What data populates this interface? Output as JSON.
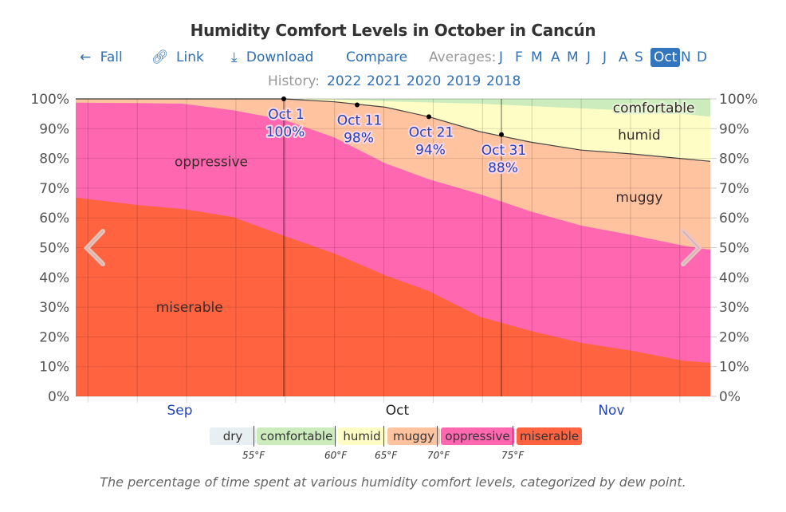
{
  "page": {
    "title": "Humidity Comfort Levels in October in Cancún",
    "nav": {
      "fall_label": "Fall",
      "link_label": "Link",
      "download_label": "Download",
      "compare_label": "Compare",
      "averages_label": "Averages:",
      "months": [
        "J",
        "F",
        "M",
        "A",
        "M",
        "J",
        "J",
        "A",
        "S",
        "Oct",
        "N",
        "D"
      ],
      "active_month": "Oct"
    },
    "history": {
      "label": "History:",
      "years": [
        "2022",
        "2021",
        "2020",
        "2019",
        "2018"
      ]
    },
    "legend": {
      "items": [
        {
          "label": "dry",
          "color": "#e8eff3"
        },
        {
          "label": "comfortable",
          "color": "#cdecbd"
        },
        {
          "label": "humid",
          "color": "#fffdc6"
        },
        {
          "label": "muggy",
          "color": "#ffc3a0"
        },
        {
          "label": "oppressive",
          "color": "#ff67b0"
        },
        {
          "label": "miserable",
          "color": "#ff6340"
        }
      ],
      "thresholds": [
        "55°F",
        "60°F",
        "65°F",
        "70°F",
        "75°F"
      ]
    },
    "caption": "The percentage of time spent at various humidity comfort levels, categorized by dew point.",
    "icons": {
      "fall": "arrow-left-icon",
      "link": "link-icon",
      "download": "download-icon",
      "prev": "chevron-left-icon",
      "next": "chevron-right-icon"
    }
  },
  "chart_data": {
    "type": "area",
    "stacked": true,
    "title": "Humidity Comfort Levels in October in Cancún",
    "xlabel": "",
    "ylabel": "",
    "x_unit": "days relative to Oct 1",
    "xlim": [
      -29,
      58
    ],
    "ylim": [
      0,
      100
    ],
    "y_ticks": [
      "0%",
      "10%",
      "20%",
      "30%",
      "40%",
      "50%",
      "60%",
      "70%",
      "80%",
      "90%",
      "100%"
    ],
    "x_tick_labels": [
      {
        "label": "Sep",
        "day": -15
      },
      {
        "label": "Oct",
        "day": 15
      },
      {
        "label": "Nov",
        "day": 44.5
      }
    ],
    "highlight_month": "Oct",
    "grid": true,
    "x": [
      -29,
      -20,
      -14,
      -7,
      0,
      7,
      14,
      20,
      27,
      34,
      41,
      48,
      55,
      59
    ],
    "cumulative_tops": [
      {
        "name": "miserable",
        "color": "#ff6340",
        "values": [
          66.8,
          64.3,
          63.0,
          60.3,
          54.0,
          48.0,
          40.7,
          35.4,
          26.8,
          22.0,
          18.0,
          15.3,
          12.0,
          11.3
        ]
      },
      {
        "name": "oppressive",
        "color": "#ff67b0",
        "values": [
          98.7,
          98.6,
          98.4,
          96.2,
          93.0,
          87.0,
          78.3,
          73.0,
          68.0,
          62.2,
          57.4,
          54.2,
          50.7,
          49.3
        ]
      },
      {
        "name": "muggy",
        "color": "#ffc3a0",
        "values": [
          100,
          100,
          100,
          100,
          100,
          99.0,
          97.2,
          94.0,
          89.0,
          85.5,
          82.8,
          81.5,
          79.9,
          79.0
        ]
      },
      {
        "name": "humid",
        "color": "#fffdc6",
        "values": [
          100,
          100,
          100,
          100,
          100,
          99.8,
          99.2,
          98.8,
          98.4,
          97.6,
          96.8,
          96.0,
          95.0,
          94.0
        ]
      },
      {
        "name": "comfortable",
        "color": "#cdecbd",
        "values": [
          100,
          100,
          100,
          100,
          100,
          100,
          100,
          100,
          100,
          100,
          100,
          100,
          100,
          100
        ]
      }
    ],
    "area_labels": [
      {
        "text": "miserable",
        "day": -13,
        "pct": 30
      },
      {
        "text": "oppressive",
        "day": -10,
        "pct": 79
      },
      {
        "text": "muggy",
        "day": 49,
        "pct": 67
      },
      {
        "text": "humid",
        "day": 49,
        "pct": 88
      },
      {
        "text": "comfortable",
        "day": 51,
        "pct": 97
      }
    ],
    "annotations": [
      {
        "date": "Oct 1",
        "day": 0,
        "value": 100,
        "label": "100%"
      },
      {
        "date": "Oct 11",
        "day": 10,
        "value": 98,
        "label": "98%"
      },
      {
        "date": "Oct 21",
        "day": 20,
        "value": 94,
        "label": "94%"
      },
      {
        "date": "Oct 31",
        "day": 30,
        "value": 88,
        "label": "88%"
      }
    ]
  }
}
